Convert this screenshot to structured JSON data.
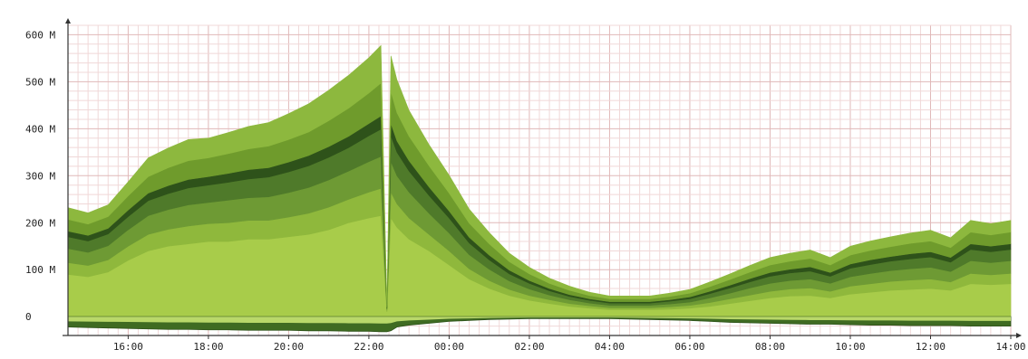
{
  "chart_data": {
    "type": "area",
    "stacked": true,
    "title": "",
    "xlabel": "",
    "ylabel": "",
    "grid": true,
    "legend": "none",
    "x_ticks": [
      "16:00",
      "18:00",
      "20:00",
      "22:00",
      "00:00",
      "02:00",
      "04:00",
      "06:00",
      "08:00",
      "10:00",
      "12:00",
      "14:00"
    ],
    "y_ticks": [
      "0",
      "100 M",
      "200 M",
      "300 M",
      "400 M",
      "500 M",
      "600 M"
    ],
    "y_tick_values": [
      0,
      100,
      200,
      300,
      400,
      500,
      600
    ],
    "ylim": [
      -40,
      620
    ],
    "xlim": [
      14.5,
      38.0
    ],
    "x": [
      14.5,
      15.0,
      15.5,
      16.0,
      16.5,
      17.0,
      17.5,
      18.0,
      18.5,
      19.0,
      19.5,
      20.0,
      20.5,
      21.0,
      21.5,
      22.0,
      22.3,
      22.45,
      22.55,
      22.7,
      23.0,
      23.5,
      24.0,
      24.5,
      25.0,
      25.5,
      26.0,
      26.5,
      27.0,
      27.5,
      28.0,
      28.5,
      29.0,
      29.5,
      30.0,
      30.5,
      31.0,
      31.5,
      32.0,
      32.5,
      33.0,
      33.5,
      34.0,
      34.5,
      35.0,
      35.5,
      36.0,
      36.5,
      37.0,
      37.5,
      38.0
    ],
    "colors": [
      "#a8cc4a",
      "#8fb83c",
      "#6e9a34",
      "#4f7a2a",
      "#2e521a",
      "#6f9b2c",
      "#8db83e"
    ],
    "series": [
      {
        "values": [
          90,
          85,
          95,
          120,
          140,
          150,
          155,
          160,
          160,
          165,
          165,
          170,
          175,
          185,
          200,
          210,
          215,
          10,
          210,
          190,
          165,
          140,
          110,
          80,
          60,
          45,
          35,
          28,
          22,
          18,
          15,
          15,
          15,
          16,
          18,
          22,
          28,
          34,
          40,
          44,
          45,
          40,
          48,
          52,
          56,
          58,
          60,
          56,
          70,
          68,
          70
        ]
      },
      {
        "values": [
          25,
          24,
          26,
          30,
          35,
          36,
          38,
          38,
          40,
          40,
          40,
          42,
          45,
          48,
          50,
          55,
          58,
          3,
          55,
          50,
          45,
          35,
          30,
          22,
          17,
          13,
          10,
          8,
          6,
          5,
          4,
          4,
          4,
          5,
          6,
          8,
          10,
          12,
          14,
          15,
          16,
          14,
          17,
          18,
          19,
          20,
          20,
          18,
          22,
          21,
          22
        ]
      },
      {
        "values": [
          30,
          28,
          30,
          35,
          40,
          42,
          45,
          45,
          48,
          48,
          50,
          52,
          55,
          58,
          60,
          65,
          68,
          3,
          65,
          60,
          55,
          45,
          38,
          30,
          24,
          18,
          14,
          10,
          8,
          6,
          5,
          5,
          5,
          6,
          7,
          10,
          12,
          15,
          17,
          18,
          19,
          17,
          20,
          22,
          23,
          24,
          25,
          22,
          27,
          26,
          27
        ]
      },
      {
        "values": [
          25,
          24,
          25,
          28,
          32,
          34,
          36,
          37,
          38,
          40,
          42,
          44,
          46,
          48,
          50,
          55,
          58,
          2,
          55,
          50,
          45,
          38,
          32,
          25,
          20,
          15,
          12,
          9,
          7,
          6,
          5,
          5,
          5,
          6,
          7,
          9,
          11,
          13,
          15,
          16,
          17,
          15,
          18,
          19,
          20,
          21,
          22,
          20,
          24,
          23,
          24
        ]
      },
      {
        "values": [
          12,
          12,
          12,
          14,
          16,
          17,
          18,
          18,
          19,
          20,
          20,
          21,
          22,
          23,
          24,
          26,
          28,
          2,
          26,
          24,
          22,
          18,
          15,
          12,
          10,
          8,
          6,
          5,
          4,
          3,
          3,
          3,
          3,
          3,
          4,
          5,
          6,
          7,
          8,
          8,
          9,
          8,
          9,
          10,
          10,
          11,
          11,
          10,
          12,
          12,
          12
        ]
      },
      {
        "values": [
          25,
          24,
          25,
          30,
          35,
          38,
          40,
          40,
          42,
          44,
          46,
          48,
          50,
          55,
          60,
          65,
          70,
          3,
          68,
          60,
          52,
          45,
          38,
          30,
          24,
          18,
          14,
          11,
          9,
          7,
          6,
          6,
          6,
          7,
          8,
          10,
          12,
          14,
          16,
          17,
          18,
          16,
          19,
          20,
          21,
          22,
          23,
          21,
          25,
          24,
          25
        ]
      },
      {
        "values": [
          25,
          24,
          25,
          30,
          40,
          42,
          45,
          42,
          45,
          48,
          50,
          55,
          60,
          65,
          70,
          75,
          80,
          3,
          76,
          70,
          55,
          45,
          38,
          30,
          24,
          18,
          14,
          11,
          9,
          7,
          6,
          6,
          6,
          7,
          8,
          10,
          12,
          14,
          16,
          17,
          18,
          16,
          19,
          20,
          21,
          22,
          23,
          21,
          25,
          24,
          25
        ]
      },
      {
        "values": [
          -22,
          -23,
          -24,
          -25,
          -26,
          -27,
          -27,
          -28,
          -28,
          -29,
          -29,
          -29,
          -30,
          -30,
          -31,
          -31,
          -32,
          -32,
          -30,
          -22,
          -18,
          -14,
          -10,
          -8,
          -6,
          -5,
          -4,
          -4,
          -4,
          -4,
          -4,
          -5,
          -6,
          -7,
          -8,
          -10,
          -12,
          -13,
          -14,
          -15,
          -16,
          -16,
          -17,
          -18,
          -18,
          -19,
          -19,
          -19,
          -20,
          -20,
          -20
        ]
      }
    ]
  }
}
